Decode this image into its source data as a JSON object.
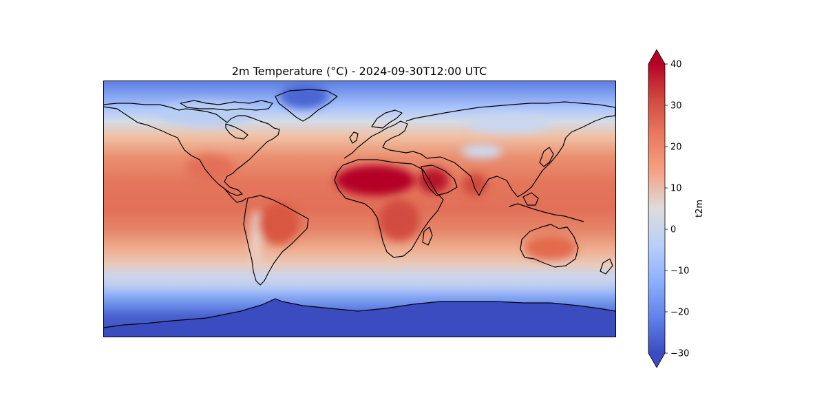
{
  "figure": {
    "title": "2m Temperature (°C) - 2024-09-30T12:00 UTC"
  },
  "map": {
    "variable": "t2m",
    "units": "°C",
    "colormap": "coolwarm",
    "vmin": -30,
    "vmax": 40,
    "extend": "both"
  },
  "colorbar": {
    "label": "t2m",
    "ticks": [
      {
        "value": 40,
        "label": "40"
      },
      {
        "value": 30,
        "label": "30"
      },
      {
        "value": 20,
        "label": "20"
      },
      {
        "value": 10,
        "label": "10"
      },
      {
        "value": 0,
        "label": "0"
      },
      {
        "value": -10,
        "label": "−10"
      },
      {
        "value": -20,
        "label": "−20"
      },
      {
        "value": -30,
        "label": "−30"
      }
    ],
    "colors": {
      "max_extend": "#b40426",
      "min_extend": "#3b4cc0"
    }
  }
}
